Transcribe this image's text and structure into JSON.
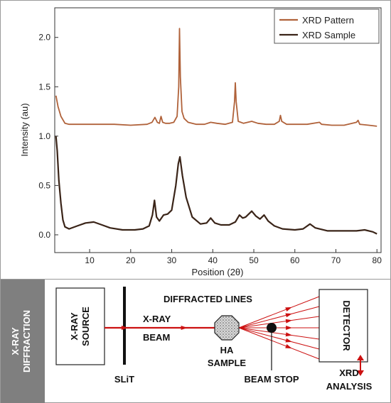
{
  "chart_data": {
    "type": "line",
    "xlabel": "Position (2θ)",
    "ylabel": "Intensity (au)",
    "xlim": [
      1.5,
      81
    ],
    "ylim": [
      -0.18,
      2.3
    ],
    "xticks": [
      10,
      20,
      30,
      40,
      50,
      60,
      70,
      80
    ],
    "yticks": [
      0.0,
      0.5,
      1.0,
      1.5,
      2.0
    ],
    "xtick_labels": [
      "10",
      "20",
      "30",
      "40",
      "50",
      "60",
      "70",
      "80"
    ],
    "ytick_labels": [
      "0.0",
      "0.5",
      "1.0",
      "1.5",
      "2.0"
    ],
    "legend_position": "top-right",
    "grid": false,
    "series": [
      {
        "name": "XRD Pattern",
        "color": "#b0623a",
        "points": [
          [
            1.8,
            1.41
          ],
          [
            2.3,
            1.3
          ],
          [
            3,
            1.2
          ],
          [
            4,
            1.13
          ],
          [
            5,
            1.12
          ],
          [
            8,
            1.12
          ],
          [
            12,
            1.12
          ],
          [
            16,
            1.12
          ],
          [
            20,
            1.11
          ],
          [
            24,
            1.12
          ],
          [
            25.2,
            1.14
          ],
          [
            25.9,
            1.19
          ],
          [
            26.5,
            1.14
          ],
          [
            27,
            1.13
          ],
          [
            27.4,
            1.2
          ],
          [
            27.8,
            1.14
          ],
          [
            28.5,
            1.13
          ],
          [
            29.5,
            1.13
          ],
          [
            30.5,
            1.14
          ],
          [
            31.3,
            1.2
          ],
          [
            31.7,
            1.5
          ],
          [
            31.9,
            2.09
          ],
          [
            32.1,
            1.6
          ],
          [
            32.5,
            1.25
          ],
          [
            33,
            1.18
          ],
          [
            34,
            1.14
          ],
          [
            36,
            1.12
          ],
          [
            38,
            1.12
          ],
          [
            39.5,
            1.14
          ],
          [
            41,
            1.13
          ],
          [
            43,
            1.12
          ],
          [
            44.8,
            1.14
          ],
          [
            45.3,
            1.35
          ],
          [
            45.5,
            1.54
          ],
          [
            45.7,
            1.35
          ],
          [
            46.2,
            1.15
          ],
          [
            47.5,
            1.13
          ],
          [
            49.5,
            1.15
          ],
          [
            51,
            1.13
          ],
          [
            53,
            1.12
          ],
          [
            55,
            1.12
          ],
          [
            56.2,
            1.15
          ],
          [
            56.5,
            1.21
          ],
          [
            56.8,
            1.15
          ],
          [
            58,
            1.12
          ],
          [
            60,
            1.12
          ],
          [
            63,
            1.12
          ],
          [
            66,
            1.14
          ],
          [
            66.5,
            1.12
          ],
          [
            69,
            1.11
          ],
          [
            72,
            1.11
          ],
          [
            75,
            1.14
          ],
          [
            75.4,
            1.16
          ],
          [
            75.8,
            1.12
          ],
          [
            78,
            1.11
          ],
          [
            80,
            1.1
          ]
        ]
      },
      {
        "name": "XRD Sample",
        "color": "#3a2418",
        "points": [
          [
            1.8,
            1.0
          ],
          [
            2.1,
            0.85
          ],
          [
            2.5,
            0.55
          ],
          [
            3,
            0.32
          ],
          [
            3.5,
            0.15
          ],
          [
            4,
            0.08
          ],
          [
            5,
            0.06
          ],
          [
            7,
            0.09
          ],
          [
            9,
            0.12
          ],
          [
            11,
            0.13
          ],
          [
            13,
            0.1
          ],
          [
            15,
            0.07
          ],
          [
            18,
            0.05
          ],
          [
            21,
            0.05
          ],
          [
            23,
            0.06
          ],
          [
            24.5,
            0.09
          ],
          [
            25.3,
            0.2
          ],
          [
            25.8,
            0.35
          ],
          [
            26.3,
            0.18
          ],
          [
            27,
            0.14
          ],
          [
            28,
            0.2
          ],
          [
            29,
            0.21
          ],
          [
            30,
            0.25
          ],
          [
            31,
            0.5
          ],
          [
            31.6,
            0.72
          ],
          [
            32,
            0.79
          ],
          [
            32.6,
            0.6
          ],
          [
            33.5,
            0.38
          ],
          [
            35,
            0.18
          ],
          [
            37,
            0.11
          ],
          [
            38.5,
            0.12
          ],
          [
            39.5,
            0.17
          ],
          [
            40.5,
            0.12
          ],
          [
            42,
            0.1
          ],
          [
            44,
            0.1
          ],
          [
            45.5,
            0.13
          ],
          [
            46.5,
            0.2
          ],
          [
            47.3,
            0.17
          ],
          [
            48,
            0.18
          ],
          [
            49.5,
            0.24
          ],
          [
            50.5,
            0.19
          ],
          [
            51.5,
            0.16
          ],
          [
            52.5,
            0.2
          ],
          [
            53.5,
            0.14
          ],
          [
            55,
            0.09
          ],
          [
            57,
            0.06
          ],
          [
            60,
            0.05
          ],
          [
            62,
            0.06
          ],
          [
            63.7,
            0.11
          ],
          [
            65,
            0.07
          ],
          [
            68,
            0.04
          ],
          [
            72,
            0.04
          ],
          [
            75,
            0.04
          ],
          [
            77,
            0.05
          ],
          [
            79,
            0.03
          ],
          [
            80,
            0.01
          ]
        ]
      }
    ]
  },
  "diagram": {
    "side_label": [
      "X-RAY",
      "DIFFRACTION"
    ],
    "source_label": [
      "X-RAY",
      "SOURCE"
    ],
    "slit_label": "SLiT",
    "beam_label": [
      "X-RAY",
      "BEAM"
    ],
    "diffracted_label": "DIFFRACTED LINES",
    "sample_label": [
      "HA",
      "SAMPLE"
    ],
    "beam_stop_label": "BEAM STOP",
    "detector_label": "DETECTOR",
    "analysis_label": [
      "XRD",
      "ANALYSIS"
    ],
    "beam_color": "#cc1111",
    "panel_color": "#7f7f7f"
  }
}
